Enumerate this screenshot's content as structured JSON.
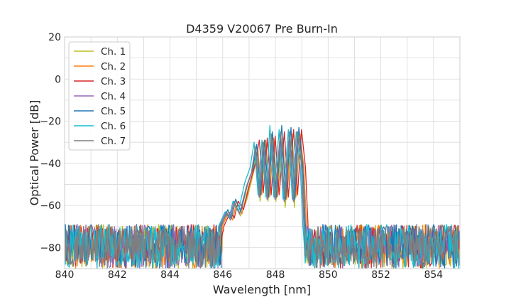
{
  "chart_data": {
    "type": "line",
    "title": "D4359 V20067 Pre Burn-In",
    "xlabel": "Wavelength [nm]",
    "ylabel": "Optical Power [dB]",
    "xlim": [
      840,
      855
    ],
    "ylim": [
      -90,
      20
    ],
    "xticks": [
      "840",
      "842",
      "844",
      "846",
      "848",
      "850",
      "852",
      "854"
    ],
    "yticks": [
      "20",
      "0",
      "−20",
      "−40",
      "−60",
      "−80"
    ],
    "grid": true,
    "legend_position": "top-left",
    "noise_floor_db": [
      -90,
      -69
    ],
    "series": [
      {
        "name": "Ch. 1",
        "color": "#bcbd22",
        "shift": 0.02,
        "points": [
          [
            845.9,
            -70
          ],
          [
            846.15,
            -64
          ],
          [
            846.3,
            -66
          ],
          [
            846.45,
            -59
          ],
          [
            846.65,
            -65
          ],
          [
            846.9,
            -57
          ],
          [
            847.1,
            -47
          ],
          [
            847.25,
            -35
          ],
          [
            847.4,
            -58
          ],
          [
            847.55,
            -36
          ],
          [
            847.7,
            -58
          ],
          [
            847.85,
            -30
          ],
          [
            848.0,
            -58
          ],
          [
            848.2,
            -32
          ],
          [
            848.35,
            -61
          ],
          [
            848.55,
            -32
          ],
          [
            848.7,
            -61
          ],
          [
            848.85,
            -26
          ],
          [
            849.0,
            -40
          ],
          [
            849.1,
            -70
          ]
        ]
      },
      {
        "name": "Ch. 2",
        "color": "#ff7f0e",
        "shift": 0.08,
        "points": [
          [
            845.9,
            -70
          ],
          [
            846.15,
            -63
          ],
          [
            846.3,
            -67
          ],
          [
            846.45,
            -58
          ],
          [
            846.65,
            -64
          ],
          [
            846.9,
            -51
          ],
          [
            847.1,
            -44
          ],
          [
            847.25,
            -33
          ],
          [
            847.4,
            -55
          ],
          [
            847.55,
            -29
          ],
          [
            847.7,
            -56
          ],
          [
            847.85,
            -28
          ],
          [
            848.0,
            -56
          ],
          [
            848.2,
            -28
          ],
          [
            848.35,
            -57
          ],
          [
            848.55,
            -26
          ],
          [
            848.7,
            -56
          ],
          [
            848.85,
            -26
          ],
          [
            849.0,
            -42
          ],
          [
            849.1,
            -70
          ]
        ]
      },
      {
        "name": "Ch. 3",
        "color": "#d62728",
        "shift": 0.14,
        "points": [
          [
            845.9,
            -70
          ],
          [
            846.15,
            -63
          ],
          [
            846.3,
            -66
          ],
          [
            846.45,
            -58
          ],
          [
            846.65,
            -62
          ],
          [
            846.9,
            -49
          ],
          [
            847.1,
            -40
          ],
          [
            847.25,
            -29
          ],
          [
            847.4,
            -54
          ],
          [
            847.55,
            -28
          ],
          [
            847.7,
            -55
          ],
          [
            847.85,
            -27
          ],
          [
            848.0,
            -55
          ],
          [
            848.2,
            -25
          ],
          [
            848.35,
            -56
          ],
          [
            848.55,
            -24
          ],
          [
            848.7,
            -55
          ],
          [
            848.85,
            -24
          ],
          [
            849.0,
            -42
          ],
          [
            849.1,
            -70
          ]
        ]
      },
      {
        "name": "Ch. 4",
        "color": "#9467bd",
        "shift": -0.02,
        "points": [
          [
            845.9,
            -70
          ],
          [
            846.15,
            -63
          ],
          [
            846.3,
            -66
          ],
          [
            846.45,
            -58
          ],
          [
            846.65,
            -64
          ],
          [
            846.9,
            -52
          ],
          [
            847.1,
            -45
          ],
          [
            847.25,
            -33
          ],
          [
            847.4,
            -56
          ],
          [
            847.55,
            -30
          ],
          [
            847.7,
            -57
          ],
          [
            847.85,
            -27
          ],
          [
            848.0,
            -57
          ],
          [
            848.2,
            -26
          ],
          [
            848.35,
            -58
          ],
          [
            848.55,
            -25
          ],
          [
            848.7,
            -58
          ],
          [
            848.85,
            -25
          ],
          [
            849.0,
            -40
          ],
          [
            849.1,
            -70
          ]
        ]
      },
      {
        "name": "Ch. 5",
        "color": "#1f77b4",
        "shift": 0.04,
        "points": [
          [
            845.9,
            -70
          ],
          [
            846.15,
            -62
          ],
          [
            846.3,
            -66
          ],
          [
            846.45,
            -57
          ],
          [
            846.65,
            -63
          ],
          [
            846.9,
            -50
          ],
          [
            847.1,
            -43
          ],
          [
            847.25,
            -31
          ],
          [
            847.4,
            -55
          ],
          [
            847.55,
            -29
          ],
          [
            847.7,
            -56
          ],
          [
            847.85,
            -25
          ],
          [
            848.0,
            -56
          ],
          [
            848.2,
            -22
          ],
          [
            848.35,
            -57
          ],
          [
            848.55,
            -23
          ],
          [
            848.7,
            -57
          ],
          [
            848.85,
            -23
          ],
          [
            849.0,
            -41
          ],
          [
            849.1,
            -70
          ]
        ]
      },
      {
        "name": "Ch. 6",
        "color": "#17becf",
        "shift": -0.06,
        "points": [
          [
            845.9,
            -70
          ],
          [
            846.15,
            -63
          ],
          [
            846.3,
            -66
          ],
          [
            846.45,
            -58
          ],
          [
            846.65,
            -63
          ],
          [
            846.9,
            -49
          ],
          [
            847.1,
            -42
          ],
          [
            847.25,
            -30
          ],
          [
            847.4,
            -55
          ],
          [
            847.55,
            -29
          ],
          [
            847.7,
            -56
          ],
          [
            847.85,
            -22
          ],
          [
            848.0,
            -56
          ],
          [
            848.2,
            -24
          ],
          [
            848.35,
            -57
          ],
          [
            848.55,
            -24
          ],
          [
            848.7,
            -57
          ],
          [
            848.85,
            -25
          ],
          [
            849.0,
            -41
          ],
          [
            849.1,
            -70
          ]
        ]
      },
      {
        "name": "Ch. 7",
        "color": "#7f7f7f",
        "shift": 0.0,
        "points": [
          [
            845.9,
            -70
          ],
          [
            846.15,
            -64
          ],
          [
            846.3,
            -67
          ],
          [
            846.45,
            -59
          ],
          [
            846.65,
            -64
          ],
          [
            846.9,
            -51
          ],
          [
            847.1,
            -44
          ],
          [
            847.25,
            -32
          ],
          [
            847.4,
            -56
          ],
          [
            847.55,
            -30
          ],
          [
            847.7,
            -57
          ],
          [
            847.85,
            -26
          ],
          [
            848.0,
            -57
          ],
          [
            848.2,
            -25
          ],
          [
            848.35,
            -58
          ],
          [
            848.55,
            -25
          ],
          [
            848.7,
            -58
          ],
          [
            848.85,
            -25
          ],
          [
            849.0,
            -41
          ],
          [
            849.1,
            -70
          ]
        ]
      }
    ]
  }
}
